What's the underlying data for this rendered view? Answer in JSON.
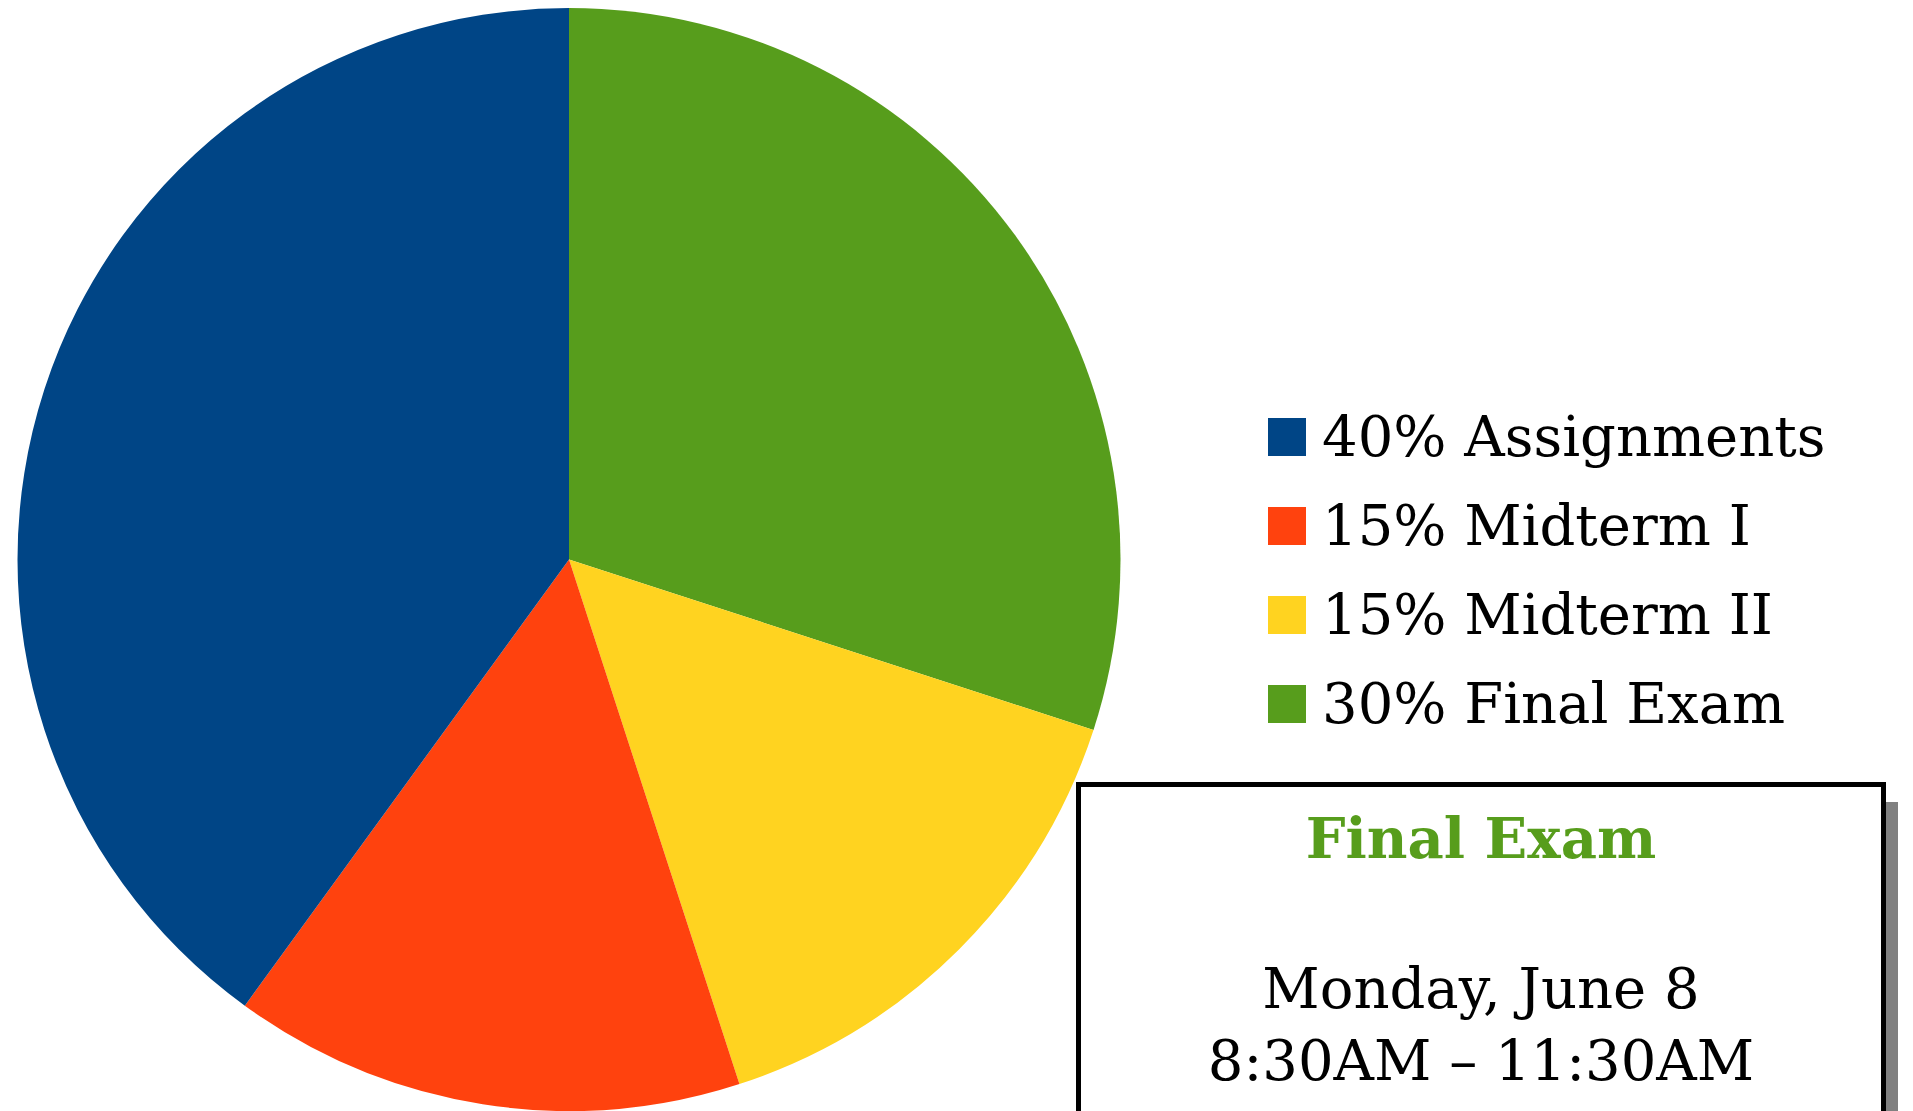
{
  "chart_data": {
    "type": "pie",
    "categories": [
      "40% Assignments",
      "15% Midterm I",
      "15% Midterm II",
      "30% Final Exam"
    ],
    "values": [
      40,
      15,
      15,
      30
    ],
    "colors": [
      "#004586",
      "#ff420e",
      "#ffd320",
      "#579d1c"
    ],
    "legend": "right",
    "annotations": [
      "Final Exam",
      "Monday, June 8",
      "8:30AM – 11:30AM"
    ]
  }
}
